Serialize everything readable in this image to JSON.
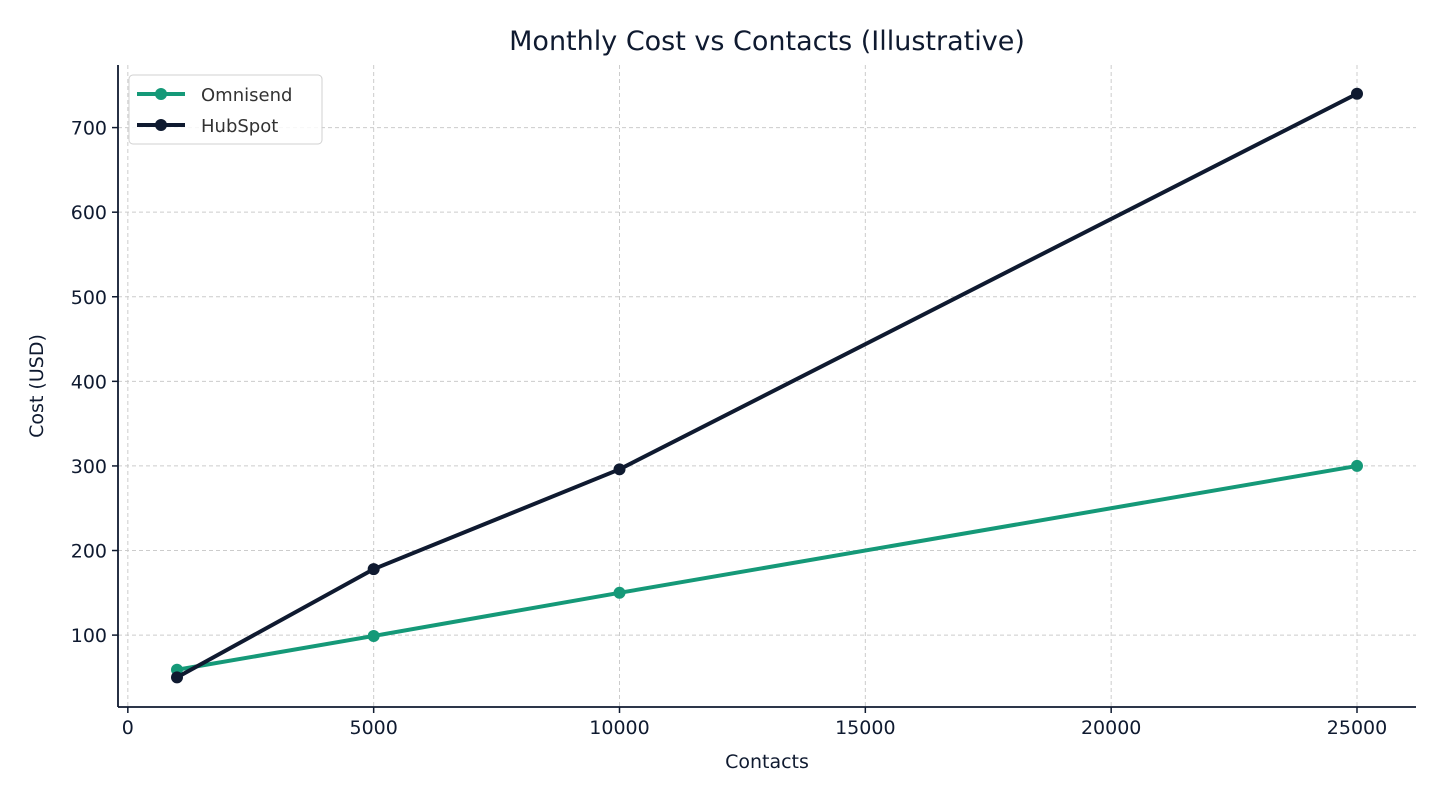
{
  "chart_data": {
    "type": "line",
    "title": "Monthly Cost vs Contacts (Illustrative)",
    "xlabel": "Contacts",
    "ylabel": "Cost (USD)",
    "xlim": [
      -200,
      26200
    ],
    "ylim": [
      15,
      774
    ],
    "xticks": [
      0,
      5000,
      10000,
      15000,
      20000,
      25000
    ],
    "yticks": [
      100,
      200,
      300,
      400,
      500,
      600,
      700
    ],
    "grid": true,
    "legend_position": "top-left",
    "x": [
      1000,
      5000,
      10000,
      25000
    ],
    "series": [
      {
        "name": "Omnisend",
        "color": "#159978",
        "values": [
          59,
          99,
          150,
          300
        ]
      },
      {
        "name": "HubSpot",
        "color": "#0f1a30",
        "values": [
          50,
          178,
          296,
          740
        ]
      }
    ]
  }
}
